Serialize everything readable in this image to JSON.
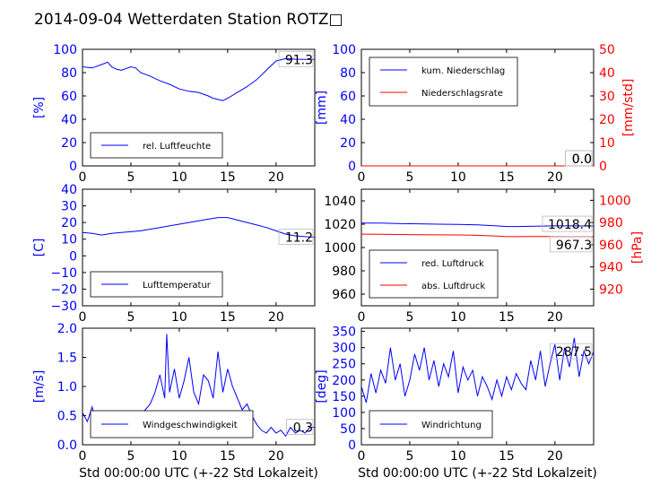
{
  "title": "2014-09-04 Wetterdaten Station ROTZ□",
  "chart_data": [
    {
      "id": "humidity",
      "type": "line",
      "ylabel": "[%]",
      "ylim": [
        0,
        100
      ],
      "yticks": [
        0,
        20,
        40,
        60,
        80,
        100
      ],
      "xlim": [
        0,
        24
      ],
      "xticks": [
        0,
        5,
        10,
        15,
        20
      ],
      "series": [
        {
          "name": "rel. Luftfeuchte",
          "color": "#0000ff",
          "x": [
            0,
            1,
            2,
            2.6,
            3,
            3.5,
            4,
            5,
            5.5,
            6,
            7,
            8,
            9,
            10,
            11,
            12,
            13,
            13.5,
            14,
            14.5,
            15,
            16,
            17,
            18,
            19,
            20,
            21,
            22,
            23,
            24
          ],
          "y": [
            85,
            84,
            87,
            89,
            85,
            83,
            82,
            85,
            84,
            80,
            77,
            73,
            70,
            66,
            64,
            63,
            60,
            58,
            57,
            56,
            58,
            63,
            68,
            74,
            82,
            90,
            92,
            91.5,
            91.3,
            91.3
          ]
        }
      ],
      "last_label": "91.3",
      "legend_loc": "lower-left"
    },
    {
      "id": "precip",
      "type": "line",
      "ylabel": "[mm]",
      "ylim": [
        0,
        100
      ],
      "yticks": [
        0,
        20,
        40,
        60,
        80,
        100
      ],
      "y2label": "[mm/std]",
      "y2lim": [
        0,
        50
      ],
      "y2ticks": [
        0,
        10,
        20,
        30,
        40,
        50
      ],
      "xlim": [
        0,
        24
      ],
      "xticks": [
        0,
        5,
        10,
        15,
        20
      ],
      "series": [
        {
          "name": "kum. Niederschlag",
          "color": "#0000ff",
          "axis": "left",
          "x": [
            0,
            24
          ],
          "y": [
            0,
            0
          ]
        },
        {
          "name": "Niederschlagsrate",
          "color": "#ff0000",
          "axis": "right",
          "x": [
            0,
            24
          ],
          "y": [
            0,
            0
          ]
        }
      ],
      "last_labels": [
        "0.0",
        "0.0"
      ],
      "legend_loc": "upper-left"
    },
    {
      "id": "temperature",
      "type": "line",
      "ylabel": "[C]",
      "ylim": [
        -30,
        40
      ],
      "yticks": [
        -30,
        -20,
        -10,
        0,
        10,
        20,
        30,
        40
      ],
      "xlim": [
        0,
        24
      ],
      "xticks": [
        0,
        5,
        10,
        15,
        20
      ],
      "series": [
        {
          "name": "Lufttemperatur",
          "color": "#0000ff",
          "x": [
            0,
            1,
            2,
            3,
            4,
            5,
            6,
            7,
            8,
            9,
            10,
            11,
            12,
            13,
            14,
            15,
            16,
            17,
            18,
            19,
            20,
            21,
            22,
            23,
            24
          ],
          "y": [
            14,
            13.5,
            12.5,
            13.5,
            14,
            14.5,
            15,
            16,
            17,
            18,
            19,
            20,
            21,
            22,
            23,
            23,
            21.5,
            20,
            18.5,
            17,
            15,
            13,
            12,
            11.5,
            11.2
          ]
        }
      ],
      "last_label": "11.2",
      "legend_loc": "lower-left"
    },
    {
      "id": "pressure",
      "type": "line",
      "ylabel": "",
      "ylim": [
        950,
        1050
      ],
      "yticks": [
        960,
        980,
        1000,
        1020,
        1040
      ],
      "y2label": "[hPa]",
      "y2lim": [
        905,
        1010
      ],
      "y2ticks": [
        920,
        940,
        960,
        980,
        1000
      ],
      "xlim": [
        0,
        24
      ],
      "xticks": [
        0,
        5,
        10,
        15,
        20
      ],
      "series": [
        {
          "name": "red. Luftdruck",
          "color": "#0000ff",
          "axis": "left",
          "x": [
            0,
            2,
            4,
            6,
            8,
            10,
            12,
            14,
            15,
            16,
            18,
            20,
            22,
            24
          ],
          "y": [
            1021,
            1021,
            1020.5,
            1020.3,
            1020,
            1019.8,
            1019.5,
            1018.5,
            1018,
            1018,
            1018.3,
            1018.5,
            1018.5,
            1018.4
          ]
        },
        {
          "name": "abs. Luftdruck",
          "color": "#ff0000",
          "axis": "right",
          "x": [
            0,
            2,
            4,
            6,
            8,
            10,
            12,
            14,
            15,
            16,
            18,
            20,
            22,
            24
          ],
          "y": [
            969.5,
            969.4,
            969.2,
            969,
            968.9,
            968.8,
            968.5,
            967.8,
            967.3,
            967.3,
            967.4,
            967.4,
            967.3,
            967.3
          ]
        }
      ],
      "last_labels": [
        "1018.4",
        "967.3"
      ],
      "legend_loc": "lower-left"
    },
    {
      "id": "windspeed",
      "type": "line",
      "ylabel": "[m/s]",
      "ylim": [
        0,
        2.0
      ],
      "yticks": [
        0.0,
        0.5,
        1.0,
        1.5,
        2.0
      ],
      "xlim": [
        0,
        24
      ],
      "xticks": [
        0,
        5,
        10,
        15,
        20
      ],
      "xlabel": "Std 00:00:00 UTC (+-22 Std Lokalzeit)",
      "series": [
        {
          "name": "Windgeschwindigkeit",
          "color": "#0000ff",
          "x": [
            0,
            0.5,
            1,
            1.5,
            2,
            2.5,
            3,
            3.5,
            4,
            4.5,
            5,
            5.5,
            6,
            6.5,
            7,
            7.5,
            8,
            8.5,
            8.7,
            9,
            9.5,
            10,
            10.5,
            11,
            11.5,
            12,
            12.5,
            13,
            13.5,
            14,
            14.5,
            15,
            15.5,
            16,
            16.5,
            17,
            17.5,
            18,
            18.5,
            19,
            19.5,
            20,
            20.5,
            21,
            21.5,
            22,
            22.5,
            23,
            23.5,
            24
          ],
          "y": [
            0.55,
            0.4,
            0.65,
            0.3,
            0.2,
            0.45,
            0.35,
            0.15,
            0.5,
            0.3,
            0.45,
            0.25,
            0.55,
            0.6,
            0.7,
            0.9,
            1.2,
            0.8,
            1.9,
            0.9,
            1.3,
            0.8,
            1.1,
            1.5,
            0.9,
            0.7,
            1.2,
            1.1,
            0.8,
            1.6,
            0.9,
            1.3,
            1.0,
            0.8,
            0.6,
            0.7,
            0.5,
            0.35,
            0.25,
            0.2,
            0.3,
            0.2,
            0.25,
            0.15,
            0.3,
            0.2,
            0.25,
            0.2,
            0.3,
            0.3
          ]
        }
      ],
      "last_label": "0.3",
      "legend_loc": "lower-left"
    },
    {
      "id": "winddir",
      "type": "line",
      "ylabel": "[deg]",
      "ylim": [
        0,
        360
      ],
      "yticks": [
        0,
        50,
        100,
        150,
        200,
        250,
        300,
        350
      ],
      "xlim": [
        0,
        24
      ],
      "xticks": [
        0,
        5,
        10,
        15,
        20
      ],
      "xlabel": "Std 00:00:00 UTC (+-22 Std Lokalzeit)",
      "series": [
        {
          "name": "Windrichtung",
          "color": "#0000ff",
          "x": [
            0,
            0.5,
            1,
            1.5,
            2,
            2.5,
            3,
            3.5,
            4,
            4.5,
            5,
            5.5,
            6,
            6.5,
            7,
            7.5,
            8,
            8.5,
            9,
            9.5,
            10,
            10.5,
            11,
            11.5,
            12,
            12.5,
            13,
            13.5,
            14,
            14.5,
            15,
            15.5,
            16,
            16.5,
            17,
            17.5,
            18,
            18.5,
            19,
            19.5,
            20,
            20.5,
            21,
            21.5,
            22,
            22.5,
            23,
            23.5,
            24
          ],
          "y": [
            180,
            130,
            220,
            160,
            230,
            190,
            300,
            200,
            250,
            150,
            200,
            280,
            230,
            300,
            200,
            260,
            180,
            250,
            210,
            290,
            160,
            240,
            200,
            230,
            150,
            210,
            180,
            140,
            200,
            150,
            210,
            170,
            220,
            190,
            170,
            260,
            200,
            290,
            180,
            250,
            310,
            200,
            300,
            240,
            330,
            210,
            290,
            250,
            287.5
          ]
        }
      ],
      "last_label": "287.5",
      "legend_loc": "lower-left"
    }
  ]
}
